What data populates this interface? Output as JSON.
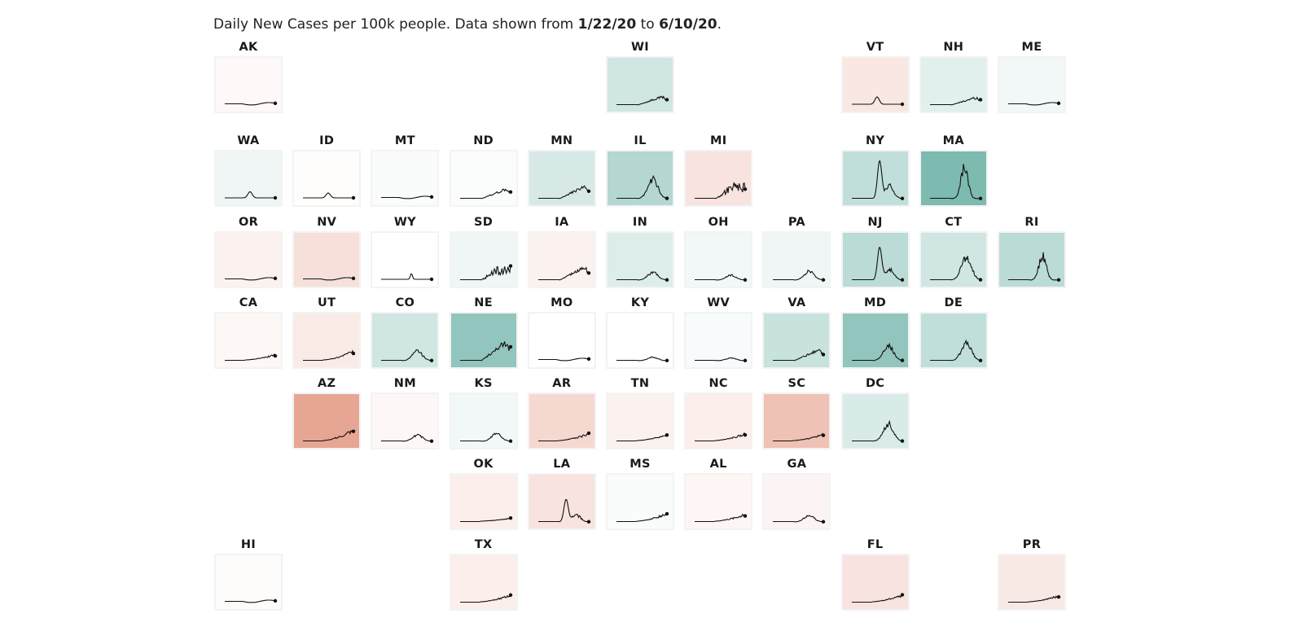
{
  "header": {
    "prefix": "Daily New Cases per 100k people. Data shown from ",
    "start": "1/22/20",
    "mid": " to ",
    "end": "6/10/20",
    "suffix": "."
  },
  "colors": {
    "positive": "#e08a72",
    "negative": "#6fb3a8",
    "line": "#111111"
  },
  "chart_data": {
    "type": "line",
    "x_range": [
      "1/22/20",
      "6/10/20"
    ],
    "value_domain": [
      -1,
      1
    ],
    "states": [
      {
        "id": "AK",
        "pattern": "flat",
        "peak": 0.1,
        "fill": 0.05
      },
      {
        "id": "WI",
        "pattern": "late",
        "peak": 0.22,
        "fill": -0.35
      },
      {
        "id": "VT",
        "pattern": "early",
        "peak": 0.18,
        "fill": 0.22
      },
      {
        "id": "NH",
        "pattern": "late",
        "peak": 0.2,
        "fill": -0.22
      },
      {
        "id": "ME",
        "pattern": "flat",
        "peak": 0.12,
        "fill": -0.1
      },
      {
        "id": "WA",
        "pattern": "early",
        "peak": 0.15,
        "fill": -0.12
      },
      {
        "id": "ID",
        "pattern": "early",
        "peak": 0.12,
        "fill": 0.02
      },
      {
        "id": "MT",
        "pattern": "flat",
        "peak": 0.06,
        "fill": -0.04
      },
      {
        "id": "ND",
        "pattern": "late",
        "peak": 0.25,
        "fill": -0.03
      },
      {
        "id": "MN",
        "pattern": "late",
        "peak": 0.32,
        "fill": -0.3
      },
      {
        "id": "IL",
        "pattern": "mid",
        "peak": 0.55,
        "fill": -0.55
      },
      {
        "id": "MI",
        "pattern": "spiky",
        "peak": 0.4,
        "fill": 0.25
      },
      {
        "id": "NY",
        "pattern": "sharp",
        "peak": 0.92,
        "fill": -0.45
      },
      {
        "id": "MA",
        "pattern": "peak",
        "peak": 0.95,
        "fill": -0.95
      },
      {
        "id": "OR",
        "pattern": "flat",
        "peak": 0.05,
        "fill": 0.12
      },
      {
        "id": "NV",
        "pattern": "flat",
        "peak": 0.12,
        "fill": 0.28
      },
      {
        "id": "WY",
        "pattern": "small",
        "peak": 0.14,
        "fill": 0.0
      },
      {
        "id": "SD",
        "pattern": "spiky",
        "peak": 0.35,
        "fill": -0.12
      },
      {
        "id": "IA",
        "pattern": "late",
        "peak": 0.33,
        "fill": 0.12
      },
      {
        "id": "IN",
        "pattern": "mid",
        "peak": 0.22,
        "fill": -0.25
      },
      {
        "id": "OH",
        "pattern": "mid",
        "peak": 0.14,
        "fill": -0.1
      },
      {
        "id": "PA",
        "pattern": "mid",
        "peak": 0.25,
        "fill": -0.12
      },
      {
        "id": "NJ",
        "pattern": "sharp",
        "peak": 0.8,
        "fill": -0.5
      },
      {
        "id": "CT",
        "pattern": "mid",
        "peak": 0.65,
        "fill": -0.35
      },
      {
        "id": "RI",
        "pattern": "peak",
        "peak": 0.75,
        "fill": -0.5
      },
      {
        "id": "CA",
        "pattern": "rising",
        "peak": 0.15,
        "fill": 0.07
      },
      {
        "id": "UT",
        "pattern": "rising",
        "peak": 0.25,
        "fill": 0.18
      },
      {
        "id": "CO",
        "pattern": "mid",
        "peak": 0.27,
        "fill": -0.35
      },
      {
        "id": "NE",
        "pattern": "late",
        "peak": 0.5,
        "fill": -0.8
      },
      {
        "id": "MO",
        "pattern": "flat",
        "peak": 0.09,
        "fill": 0.0
      },
      {
        "id": "KY",
        "pattern": "mid",
        "peak": 0.1,
        "fill": 0.0
      },
      {
        "id": "WV",
        "pattern": "mid",
        "peak": 0.08,
        "fill": -0.05
      },
      {
        "id": "VA",
        "pattern": "late",
        "peak": 0.28,
        "fill": -0.4
      },
      {
        "id": "MD",
        "pattern": "mid",
        "peak": 0.45,
        "fill": -0.8
      },
      {
        "id": "DE",
        "pattern": "mid",
        "peak": 0.5,
        "fill": -0.45
      },
      {
        "id": "AZ",
        "pattern": "rising",
        "peak": 0.32,
        "fill": 0.8
      },
      {
        "id": "NM",
        "pattern": "mid",
        "peak": 0.18,
        "fill": 0.06
      },
      {
        "id": "KS",
        "pattern": "mid",
        "peak": 0.22,
        "fill": -0.1
      },
      {
        "id": "AR",
        "pattern": "rising",
        "peak": 0.2,
        "fill": 0.35
      },
      {
        "id": "TN",
        "pattern": "rising",
        "peak": 0.16,
        "fill": 0.12
      },
      {
        "id": "NC",
        "pattern": "rising",
        "peak": 0.2,
        "fill": 0.15
      },
      {
        "id": "SC",
        "pattern": "rising",
        "peak": 0.18,
        "fill": 0.55
      },
      {
        "id": "DC",
        "pattern": "mid",
        "peak": 0.5,
        "fill": -0.28
      },
      {
        "id": "OK",
        "pattern": "rising",
        "peak": 0.09,
        "fill": 0.15
      },
      {
        "id": "LA",
        "pattern": "sharp",
        "peak": 0.55,
        "fill": 0.25
      },
      {
        "id": "MS",
        "pattern": "rising",
        "peak": 0.22,
        "fill": -0.04
      },
      {
        "id": "AL",
        "pattern": "rising",
        "peak": 0.2,
        "fill": 0.08
      },
      {
        "id": "GA",
        "pattern": "mid",
        "peak": 0.18,
        "fill": 0.1
      },
      {
        "id": "HI",
        "pattern": "flat",
        "peak": 0.05,
        "fill": 0.03
      },
      {
        "id": "TX",
        "pattern": "rising",
        "peak": 0.2,
        "fill": 0.15
      },
      {
        "id": "FL",
        "pattern": "rising",
        "peak": 0.2,
        "fill": 0.25
      },
      {
        "id": "PR",
        "pattern": "rising",
        "peak": 0.18,
        "fill": 0.2
      }
    ]
  }
}
